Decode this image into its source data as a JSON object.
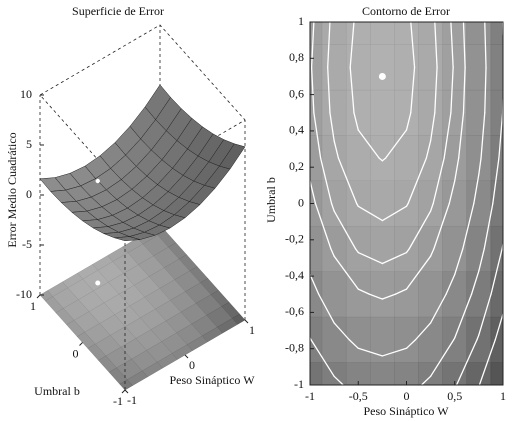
{
  "chart_data": [
    {
      "type": "surface",
      "title": "Superficie de Error",
      "xlabel": "Peso Sináptico W",
      "ylabel": "Umbral b",
      "zlabel": "Error Medio Cuadrático",
      "x": [
        -1,
        -0.75,
        -0.5,
        -0.25,
        0,
        0.25,
        0.5,
        0.75,
        1
      ],
      "y": [
        -1,
        -0.75,
        -0.5,
        -0.25,
        0,
        0.25,
        0.5,
        0.75,
        1
      ],
      "z": [
        [
          4.92,
          4.17,
          3.72,
          3.57,
          3.72,
          4.17,
          4.92,
          5.97,
          7.32
        ],
        [
          4.03,
          3.28,
          2.83,
          2.68,
          2.83,
          3.28,
          4.03,
          5.08,
          6.43
        ],
        [
          3.27,
          2.52,
          2.07,
          1.92,
          2.07,
          2.52,
          3.27,
          4.32,
          5.67
        ],
        [
          2.65,
          1.9,
          1.45,
          1.3,
          1.45,
          1.9,
          2.65,
          3.7,
          5.05
        ],
        [
          2.17,
          1.42,
          0.97,
          0.82,
          0.97,
          1.42,
          2.17,
          3.22,
          4.57
        ],
        [
          1.83,
          1.08,
          0.63,
          0.48,
          0.63,
          1.08,
          1.83,
          2.88,
          4.23
        ],
        [
          1.62,
          0.87,
          0.42,
          0.27,
          0.42,
          0.87,
          1.62,
          2.67,
          4.02
        ],
        [
          1.55,
          0.8,
          0.35,
          0.2,
          0.35,
          0.8,
          1.55,
          2.6,
          3.95
        ],
        [
          1.62,
          0.87,
          0.42,
          0.27,
          0.42,
          0.87,
          1.62,
          2.67,
          4.02
        ]
      ],
      "xlim": [
        -1,
        1
      ],
      "ylim": [
        -1,
        1
      ],
      "zlim": [
        -10,
        10
      ],
      "xticks": [
        -1,
        0,
        1
      ],
      "yticks": [
        -1,
        0,
        1
      ],
      "zticks": [
        -10,
        -5,
        0,
        5,
        10
      ],
      "min_point": {
        "x": -0.25,
        "y": 0.7,
        "z": 0.2
      }
    },
    {
      "type": "contour",
      "title": "Contorno de Error",
      "xlabel": "Peso Sináptico W",
      "ylabel": "Umbral b",
      "xlim": [
        -1,
        1
      ],
      "ylim": [
        -1,
        1
      ],
      "xticks": [
        -1,
        {
          "value": -0.5,
          "label": "-0,5"
        },
        0,
        {
          "value": 0.5,
          "label": "0,5"
        },
        1
      ],
      "yticks": [
        -1,
        {
          "value": -0.8,
          "label": "-0,8"
        },
        {
          "value": -0.6,
          "label": "-0,6"
        },
        {
          "value": -0.4,
          "label": "-0,4"
        },
        {
          "value": -0.2,
          "label": "-0,2"
        },
        0,
        {
          "value": 0.2,
          "label": "0,2"
        },
        {
          "value": 0.4,
          "label": "0,4"
        },
        {
          "value": 0.6,
          "label": "0,6"
        },
        {
          "value": 0.8,
          "label": "0,8"
        },
        1
      ],
      "levels": [
        0.5,
        1,
        1.5,
        2,
        3,
        4,
        5,
        6
      ],
      "line_color": "#ffffff",
      "min_point": {
        "x": -0.25,
        "y": 0.7
      }
    }
  ]
}
